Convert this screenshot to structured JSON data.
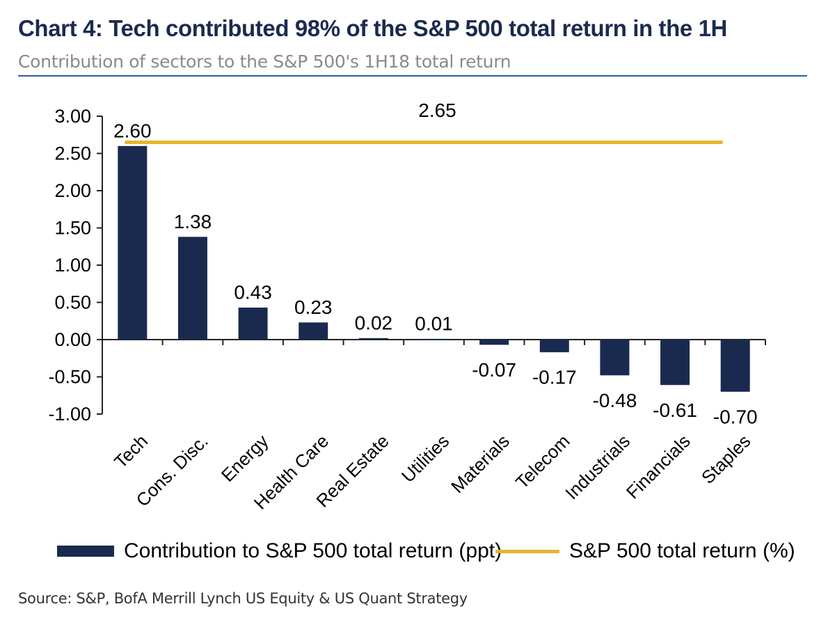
{
  "header": {
    "title": "Chart 4: Tech contributed 98% of the S&P 500 total return in the 1H",
    "subtitle": "Contribution of sectors to the S&P 500's 1H18 total return"
  },
  "chart_data": {
    "type": "bar",
    "categories": [
      "Tech",
      "Cons. Disc.",
      "Energy",
      "Health Care",
      "Real Estate",
      "Utilities",
      "Materials",
      "Telecom",
      "Industrials",
      "Financials",
      "Staples"
    ],
    "series": [
      {
        "name": "Contribution to S&P 500 total return (ppt)",
        "type": "bar",
        "values": [
          2.6,
          1.38,
          0.43,
          0.23,
          0.02,
          0.01,
          -0.07,
          -0.17,
          -0.48,
          -0.61,
          -0.7
        ],
        "labels": [
          "2.60",
          "1.38",
          "0.43",
          "0.23",
          "0.02",
          "0.01",
          "-0.07",
          "-0.17",
          "-0.48",
          "-0.61",
          "-0.70"
        ],
        "color": "#1a2a4e"
      },
      {
        "name": "S&P 500 total return (%)",
        "type": "line",
        "value": 2.65,
        "label": "2.65",
        "color": "#e6b430"
      }
    ],
    "ylim": [
      -1.0,
      3.0
    ],
    "yticks": [
      3.0,
      2.5,
      2.0,
      1.5,
      1.0,
      0.5,
      0.0,
      -0.5,
      -1.0
    ],
    "ytick_labels": [
      "3.00",
      "2.50",
      "2.00",
      "1.50",
      "1.00",
      "0.50",
      "0.00",
      "-0.50",
      "-1.00"
    ],
    "grid": false,
    "legend": "bottom"
  },
  "footer": {
    "source": "Source: S&P, BofA Merrill Lynch US Equity & US Quant Strategy"
  }
}
